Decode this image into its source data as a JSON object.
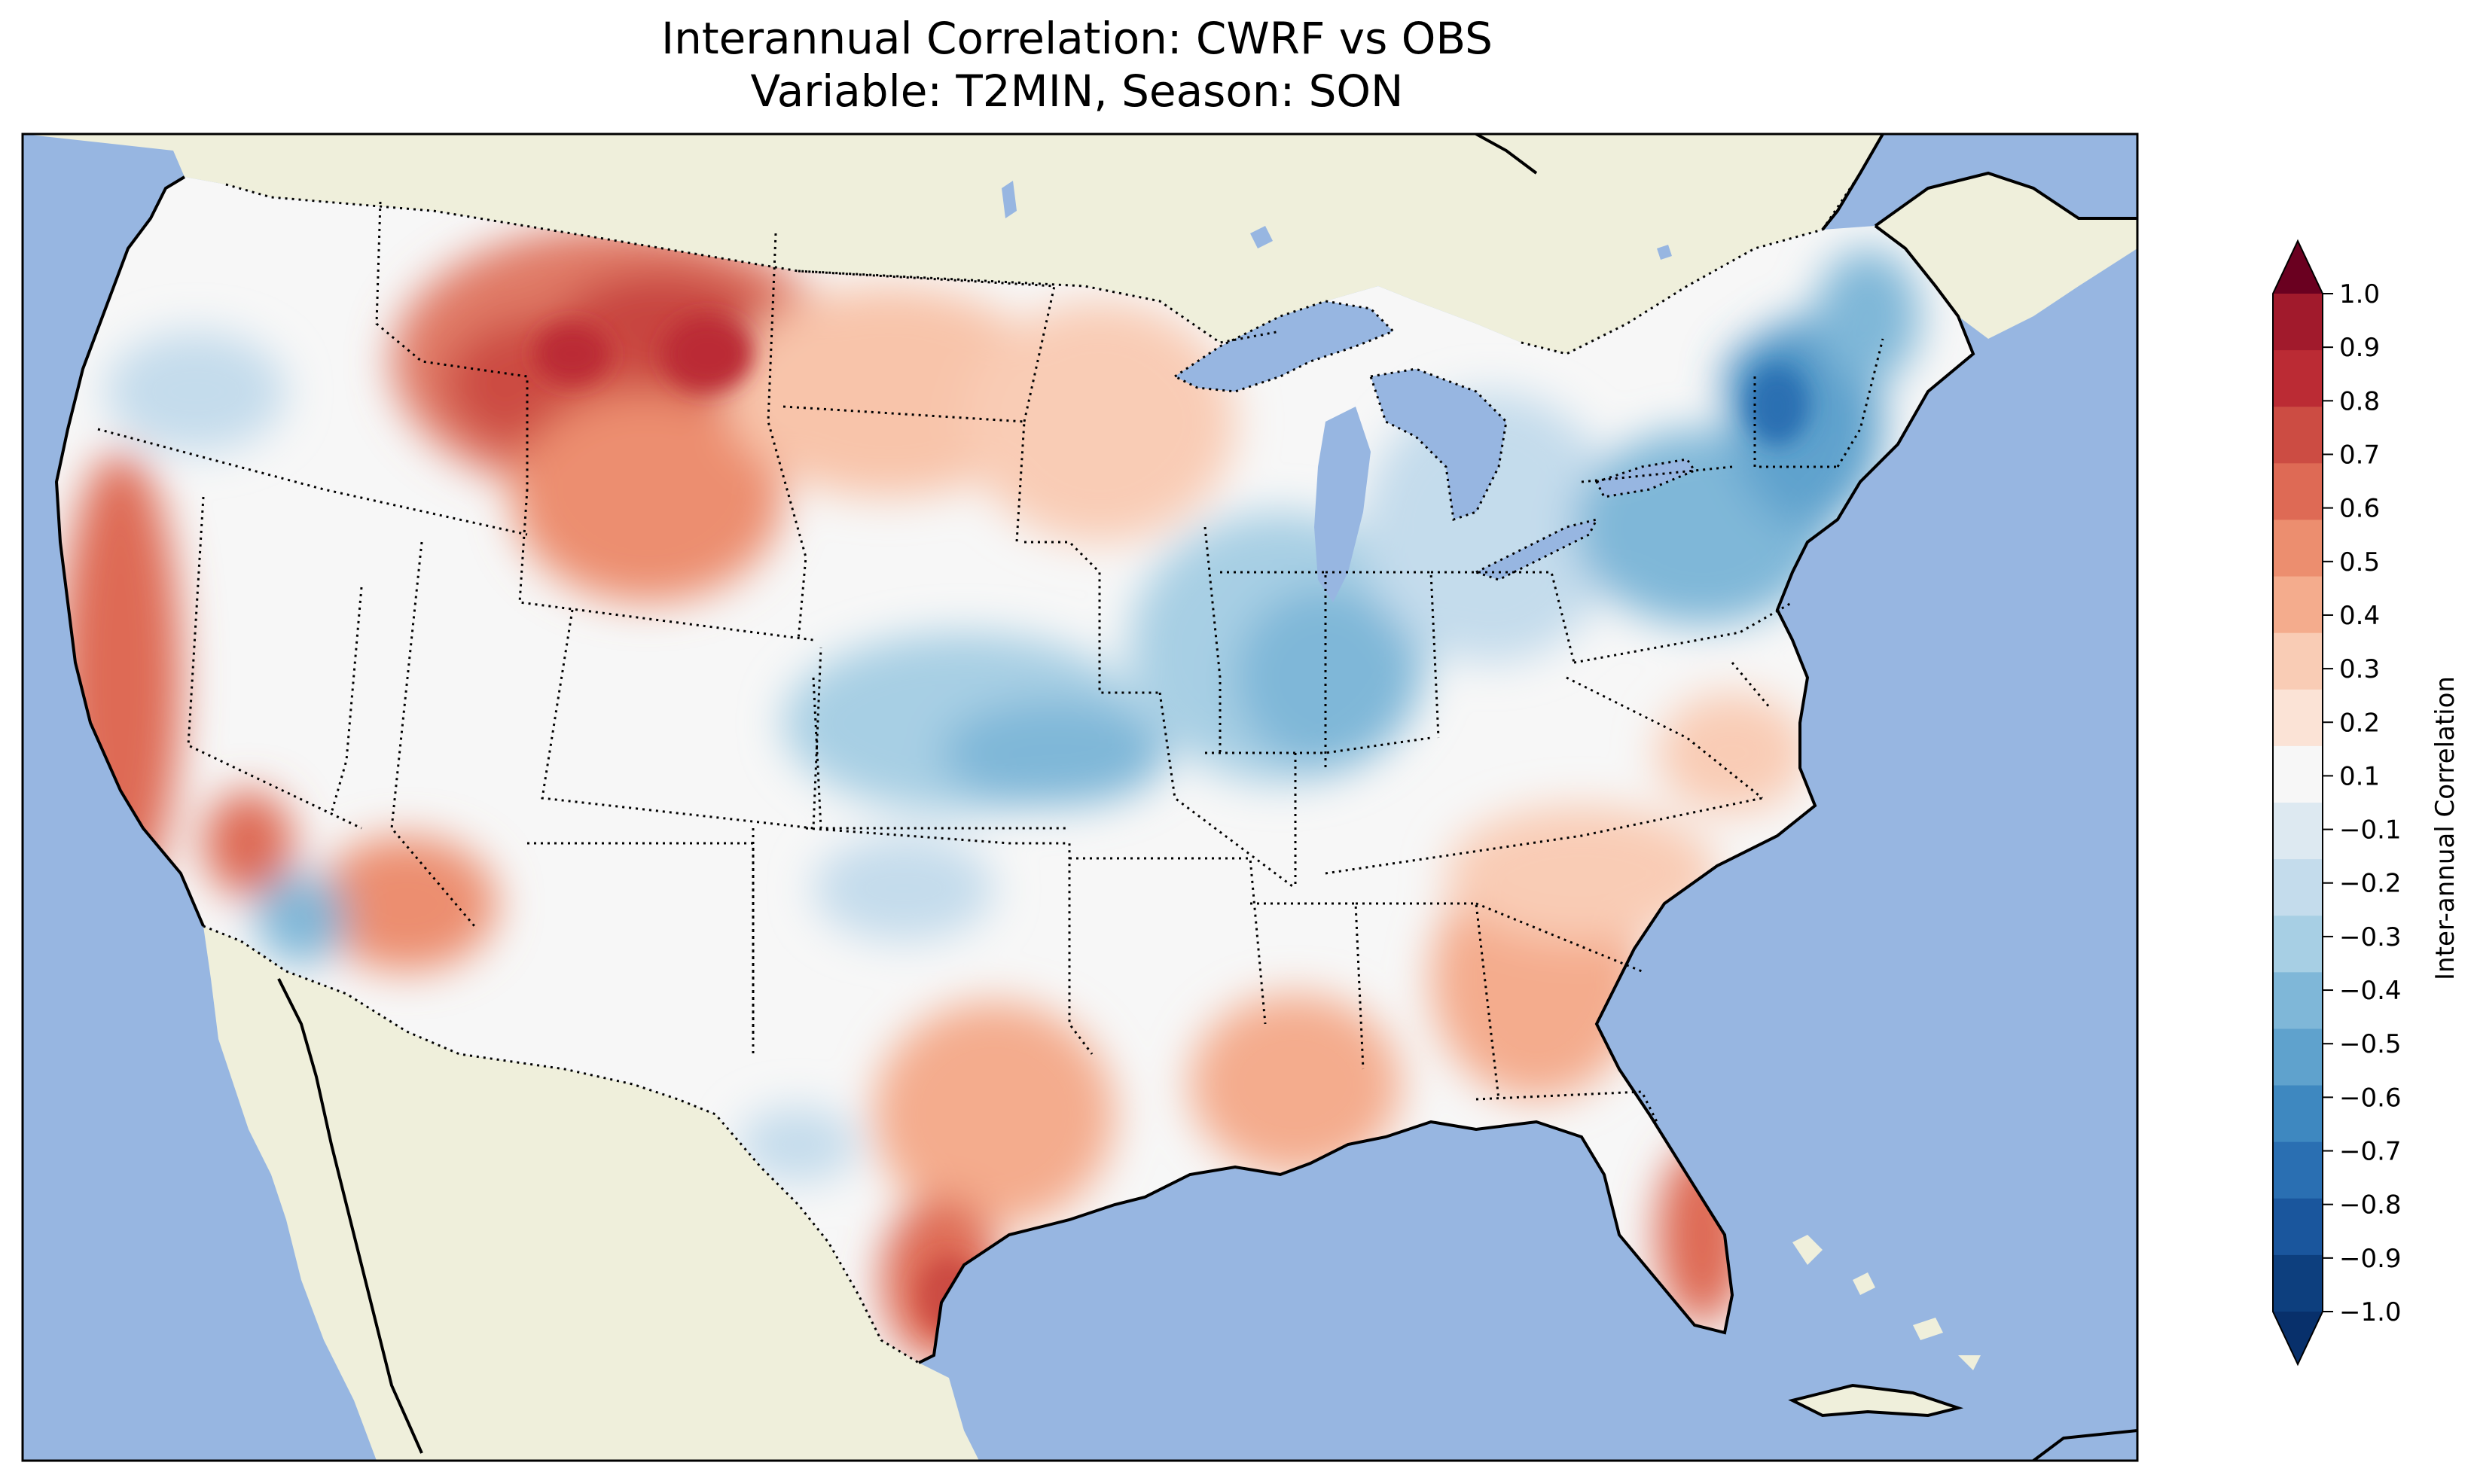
{
  "title_line1": "Interannual Correlation: CWRF vs OBS",
  "title_line2": "Variable: T2MIN, Season: SON",
  "colorbar": {
    "label": "Inter-annual Correlation",
    "ticks": [
      "1.0",
      "0.9",
      "0.8",
      "0.7",
      "0.6",
      "0.5",
      "0.4",
      "0.3",
      "0.2",
      "0.1",
      "−0.1",
      "−0.2",
      "−0.3",
      "−0.4",
      "−0.5",
      "−0.6",
      "−0.7",
      "−0.8",
      "−0.9",
      "−1.0"
    ],
    "colors_top_to_bottom": [
      "#a11a2c",
      "#bb2b34",
      "#cc4c43",
      "#de6a55",
      "#ec8e6f",
      "#f4ac8d",
      "#f9ccb5",
      "#fbe3d6",
      "#f7f7f7",
      "#dde9f1",
      "#c4dcec",
      "#a7cfe4",
      "#7fb7d8",
      "#5fa2cd",
      "#3e88c0",
      "#2a6fb2",
      "#1a569d",
      "#0d3f7e"
    ],
    "over_color": "#6a0020",
    "under_color": "#08306b"
  },
  "map": {
    "ocean_color": "#97b6e1",
    "land_color": "#efefdb",
    "lake_color": "#97b6e1"
  }
}
